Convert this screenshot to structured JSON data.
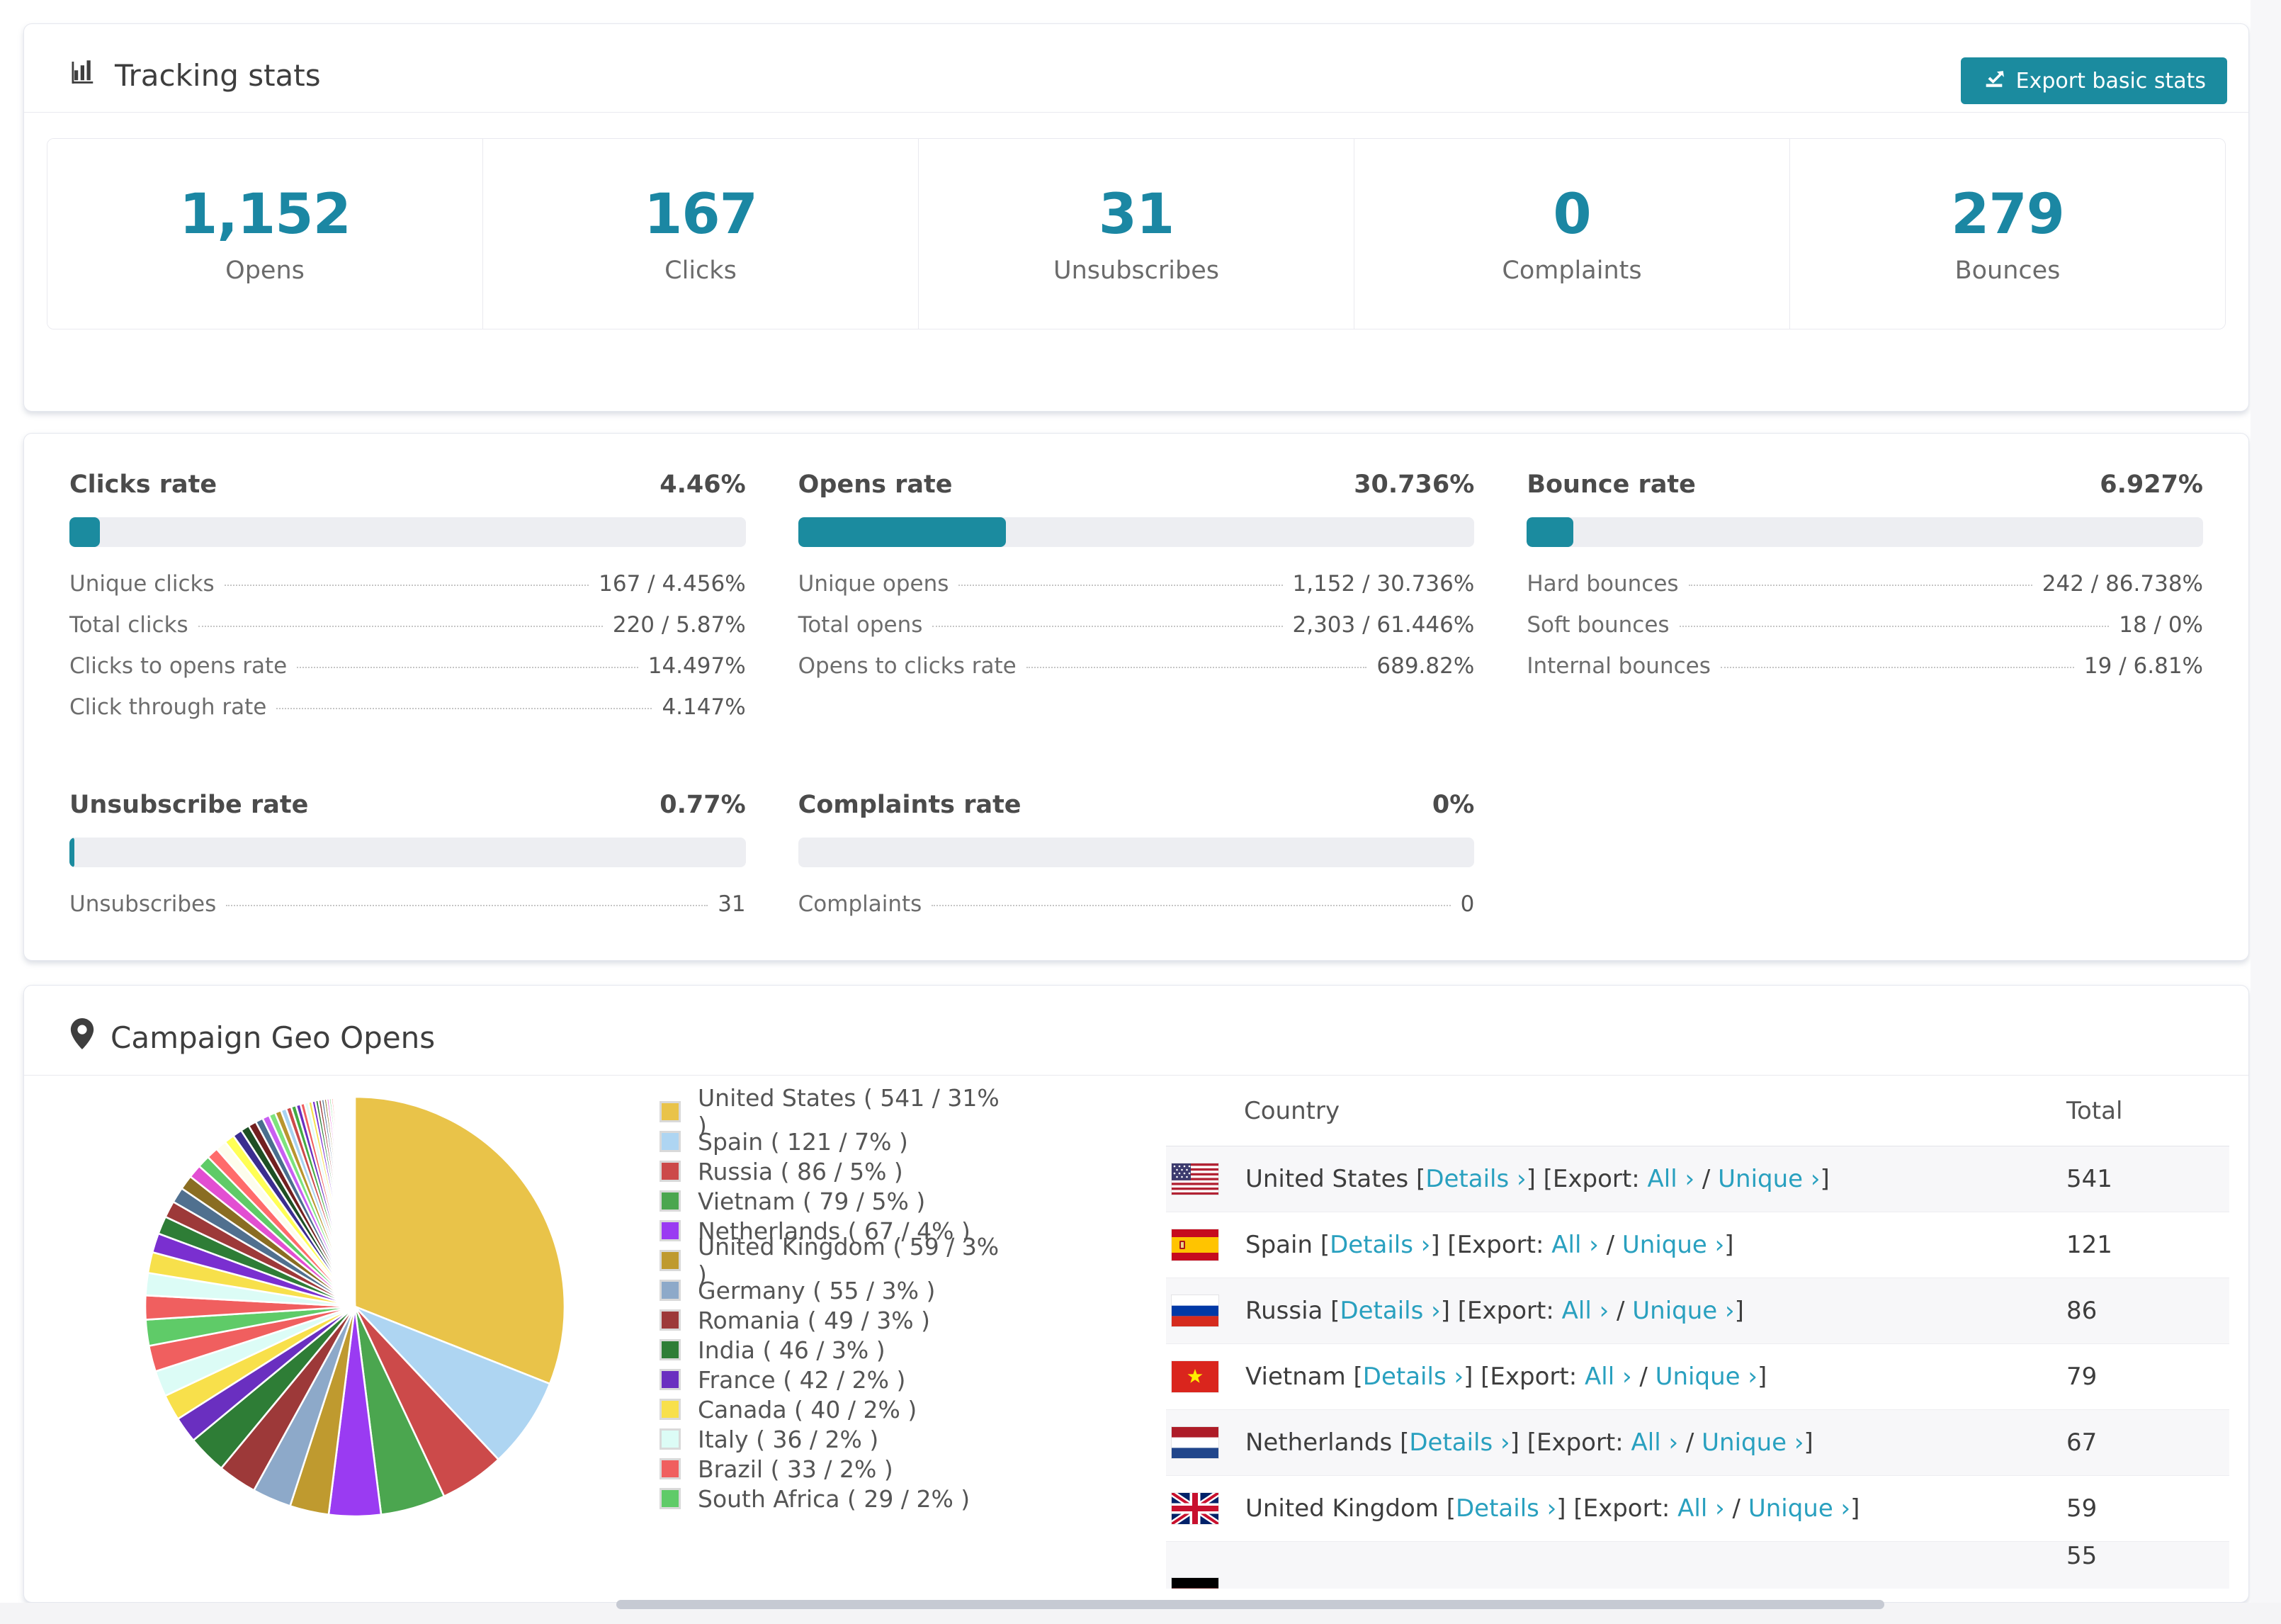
{
  "tracking_stats": {
    "title": "Tracking stats",
    "export_button": "Export basic stats",
    "accent_color": "#1b87a3",
    "boxes": [
      {
        "value": "1,152",
        "label": "Opens"
      },
      {
        "value": "167",
        "label": "Clicks"
      },
      {
        "value": "31",
        "label": "Unsubscribes"
      },
      {
        "value": "0",
        "label": "Complaints"
      },
      {
        "value": "279",
        "label": "Bounces"
      }
    ]
  },
  "rates": {
    "panels": [
      {
        "name": "Clicks rate",
        "value": "4.46%",
        "pct": 4.46,
        "rows": [
          [
            "Unique clicks",
            "167 / 4.456%"
          ],
          [
            "Total clicks",
            "220 / 5.87%"
          ],
          [
            "Clicks to opens rate",
            "14.497%"
          ],
          [
            "Click through rate",
            "4.147%"
          ]
        ]
      },
      {
        "name": "Opens rate",
        "value": "30.736%",
        "pct": 30.736,
        "rows": [
          [
            "Unique opens",
            "1,152 / 30.736%"
          ],
          [
            "Total opens",
            "2,303 / 61.446%"
          ],
          [
            "Opens to clicks rate",
            "689.82%"
          ]
        ]
      },
      {
        "name": "Bounce rate",
        "value": "6.927%",
        "pct": 6.927,
        "rows": [
          [
            "Hard bounces",
            "242 / 86.738%"
          ],
          [
            "Soft bounces",
            "18 / 0%"
          ],
          [
            "Internal bounces",
            "19 / 6.81%"
          ]
        ]
      },
      {
        "name": "Unsubscribe rate",
        "value": "0.77%",
        "pct": 0.77,
        "rows": [
          [
            "Unsubscribes",
            "31"
          ]
        ]
      },
      {
        "name": "Complaints rate",
        "value": "0%",
        "pct": 0,
        "rows": [
          [
            "Complaints",
            "0"
          ]
        ]
      }
    ]
  },
  "geo": {
    "title": "Campaign Geo Opens",
    "table": {
      "col_country": "Country",
      "col_total": "Total",
      "bracket_open": "[",
      "bracket_close": "]",
      "link_details": "Details ›",
      "export_label": "[Export:",
      "link_all": "All ›",
      "separator": "/",
      "link_unique": "Unique ›",
      "rows": [
        {
          "country": "United States",
          "flag": "us",
          "total": "541"
        },
        {
          "country": "Spain",
          "flag": "es",
          "total": "121"
        },
        {
          "country": "Russia",
          "flag": "ru",
          "total": "86"
        },
        {
          "country": "Vietnam",
          "flag": "vn",
          "total": "79"
        },
        {
          "country": "Netherlands",
          "flag": "nl",
          "total": "67"
        },
        {
          "country": "United Kingdom",
          "flag": "gb",
          "total": "59"
        },
        {
          "country": "Germany",
          "flag": "de",
          "total": "55",
          "partial": true
        }
      ]
    }
  },
  "chart_data": {
    "type": "pie",
    "title": "Campaign Geo Opens",
    "legend_position": "right",
    "start_angle_deg": -90,
    "direction": "clockwise",
    "slices": [
      {
        "label": "United States",
        "value": 541,
        "pct": 31,
        "color": "#e9c349"
      },
      {
        "label": "Spain",
        "value": 121,
        "pct": 7,
        "color": "#aed5f2"
      },
      {
        "label": "Russia",
        "value": 86,
        "pct": 5,
        "color": "#cc4a4a"
      },
      {
        "label": "Vietnam",
        "value": 79,
        "pct": 5,
        "color": "#4ba64f"
      },
      {
        "label": "Netherlands",
        "value": 67,
        "pct": 4,
        "color": "#9a3bf2"
      },
      {
        "label": "United Kingdom",
        "value": 59,
        "pct": 3,
        "color": "#bf9a2f"
      },
      {
        "label": "Germany",
        "value": 55,
        "pct": 3,
        "color": "#8da9c9"
      },
      {
        "label": "Romania",
        "value": 49,
        "pct": 3,
        "color": "#9d3939"
      },
      {
        "label": "India",
        "value": 46,
        "pct": 3,
        "color": "#2e7d36"
      },
      {
        "label": "France",
        "value": 42,
        "pct": 2,
        "color": "#6a2fc0"
      },
      {
        "label": "Canada",
        "value": 40,
        "pct": 2,
        "color": "#f8e04b"
      },
      {
        "label": "Italy",
        "value": 36,
        "pct": 2,
        "color": "#dcfcf6"
      },
      {
        "label": "Brazil",
        "value": 33,
        "pct": 2,
        "color": "#f05f5f"
      },
      {
        "label": "South Africa",
        "value": 29,
        "pct": 2,
        "color": "#5fcb68"
      }
    ],
    "others_values": [
      1.85,
      1.72,
      1.6,
      1.49,
      1.38,
      1.29,
      1.2,
      1.11,
      1.04,
      0.96,
      0.9,
      0.83,
      0.78,
      0.72,
      0.67,
      0.62,
      0.58,
      0.54,
      0.5,
      0.47,
      0.43,
      0.4,
      0.38,
      0.35,
      0.32,
      0.3,
      0.28,
      0.26,
      0.24,
      0.23,
      0.21,
      0.2,
      0.18,
      0.17,
      0.16,
      0.15,
      0.14,
      0.13,
      0.12,
      0.11,
      0.1,
      0.1,
      0.09,
      0.08,
      0.08
    ],
    "others_palette": [
      "#f05f5f",
      "#dcfcf6",
      "#f7e04b",
      "#7a2fd0",
      "#2e7d36",
      "#9d3939",
      "#50708f",
      "#8a6d22",
      "#e24fd2",
      "#5fcb68",
      "#ff6b6b",
      "#fdfdec",
      "#ffff55",
      "#3b2d8f",
      "#1e4f24",
      "#722020",
      "#4a6f8e",
      "#c95ff2",
      "#7de37d",
      "#b9952e",
      "#a8d3f0",
      "#cc4a4a",
      "#44aa44",
      "#6a2fc0"
    ]
  }
}
